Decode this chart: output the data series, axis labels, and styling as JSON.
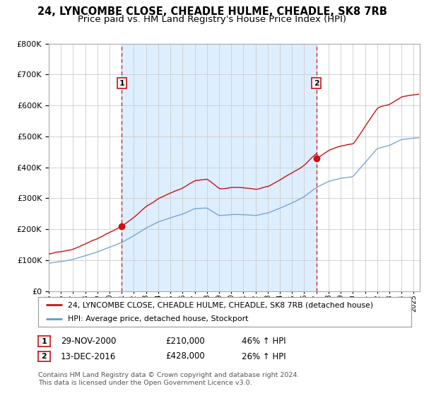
{
  "title": "24, LYNCOMBE CLOSE, CHEADLE HULME, CHEADLE, SK8 7RB",
  "subtitle": "Price paid vs. HM Land Registry's House Price Index (HPI)",
  "bg_color": "#ffffff",
  "plot_bg_color": "#ffffff",
  "grid_color": "#cccccc",
  "shade_color": "#ddeeff",
  "sale1_date_num": 2001.0,
  "sale1_value": 210000,
  "sale2_date_num": 2017.0,
  "sale2_value": 428000,
  "legend_entry1": "24, LYNCOMBE CLOSE, CHEADLE HULME, CHEADLE, SK8 7RB (detached house)",
  "legend_entry2": "HPI: Average price, detached house, Stockport",
  "table_row1": [
    "1",
    "29-NOV-2000",
    "£210,000",
    "46% ↑ HPI"
  ],
  "table_row2": [
    "2",
    "13-DEC-2016",
    "£428,000",
    "26% ↑ HPI"
  ],
  "footnote": "Contains HM Land Registry data © Crown copyright and database right 2024.\nThis data is licensed under the Open Government Licence v3.0.",
  "title_fontsize": 10.5,
  "subtitle_fontsize": 9.5,
  "hpi_color": "#6699cc",
  "price_color": "#cc1111",
  "vline_color": "#cc1111",
  "xmin": 1995.0,
  "xmax": 2025.5,
  "ymin": 0,
  "ymax": 800000
}
